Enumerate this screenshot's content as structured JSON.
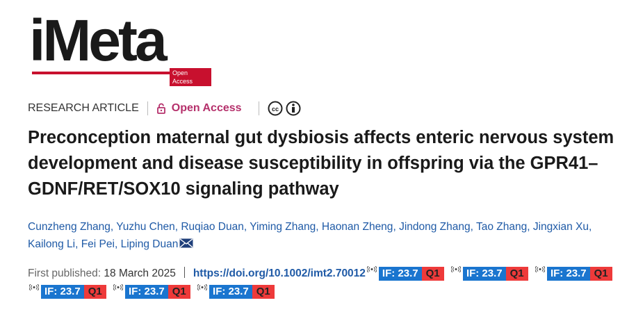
{
  "logo": {
    "text": "iMeta",
    "tag": "Open Access"
  },
  "article_type": "RESEARCH ARTICLE",
  "access": "Open Access",
  "title": "Preconception maternal gut dysbiosis affects enteric nervous system development and disease susceptibility in offspring via the GPR41–GDNF/RET/SOX10 signaling pathway",
  "authors": [
    "Cunzheng Zhang",
    "Yuzhu Chen",
    "Ruqiao Duan",
    "Yiming Zhang",
    "Haonan Zheng",
    "Jindong Zhang",
    "Tao Zhang",
    "Jingxian Xu",
    "Kailong Li",
    "Fei Pei",
    "Liping Duan"
  ],
  "author_separator": ",",
  "published_label": "First published:",
  "published_date": "18 March 2025",
  "doi": "https://doi.org/10.1002/imt2.70012",
  "badges": [
    {
      "impact": "IF: 23.7",
      "quartile": "Q1"
    },
    {
      "impact": "IF: 23.7",
      "quartile": "Q1"
    },
    {
      "impact": "IF: 23.7",
      "quartile": "Q1"
    },
    {
      "impact": "IF: 23.7",
      "quartile": "Q1"
    },
    {
      "impact": "IF: 23.7",
      "quartile": "Q1"
    },
    {
      "impact": "IF: 23.7",
      "quartile": "Q1"
    }
  ]
}
